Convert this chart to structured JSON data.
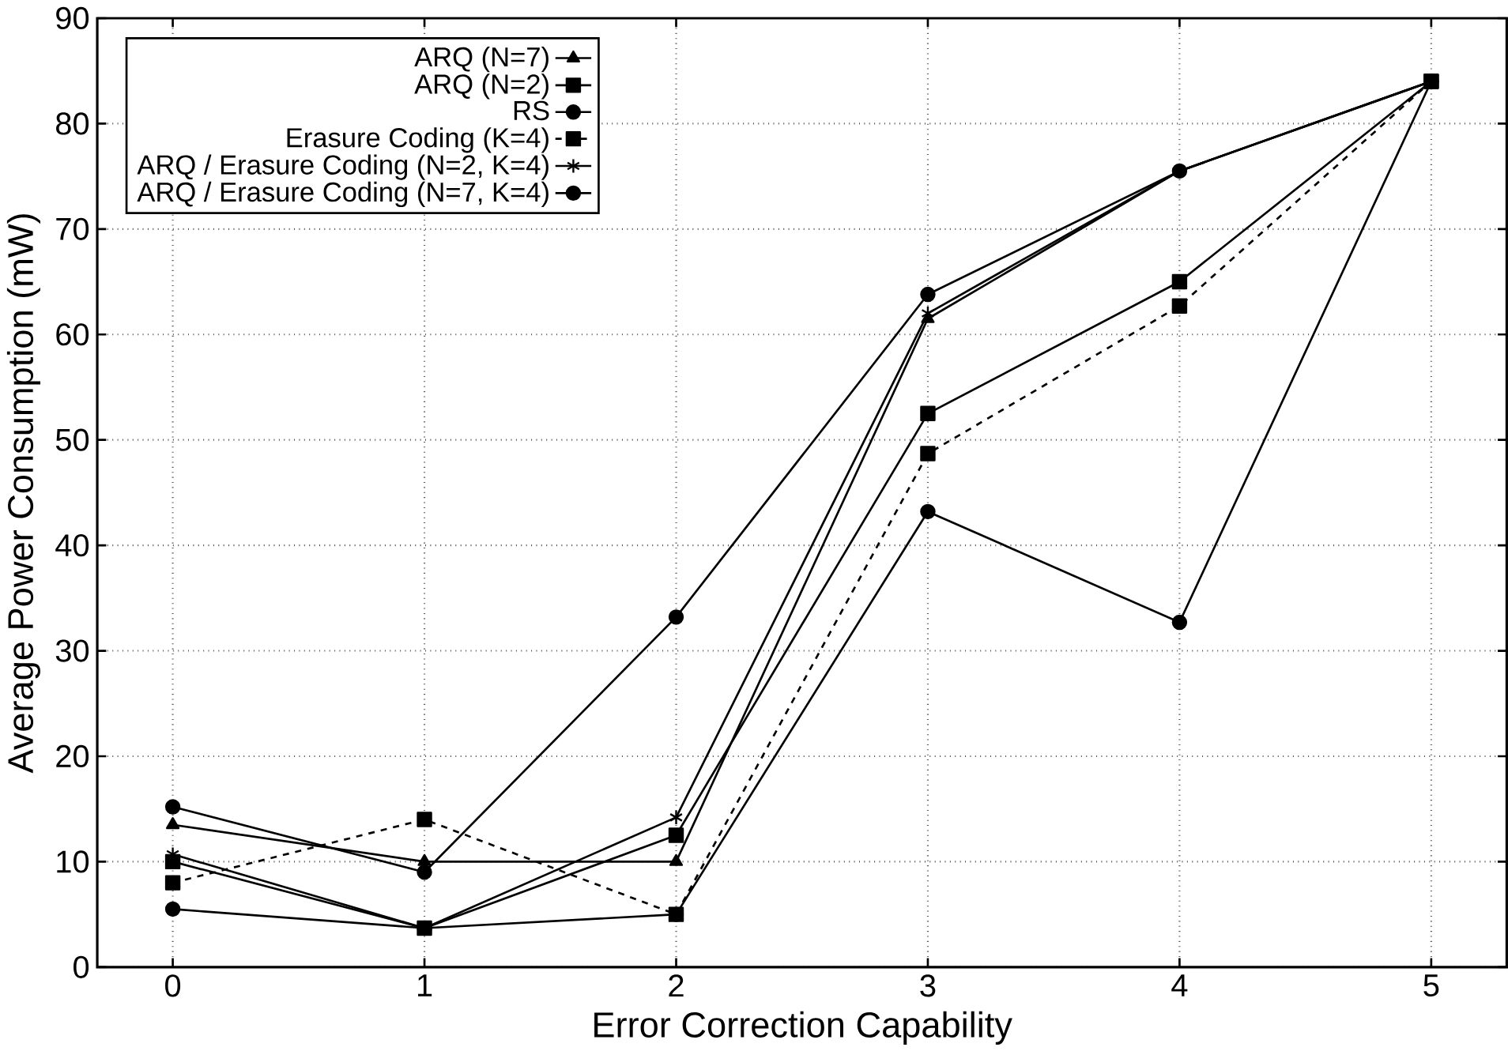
{
  "chart_data": {
    "type": "line",
    "xlabel": "Error Correction Capability",
    "ylabel": "Average Power Consumption (mW)",
    "x": [
      0,
      1,
      2,
      3,
      4,
      5
    ],
    "xlim": [
      -0.3,
      5.3
    ],
    "xticks": [
      0,
      1,
      2,
      3,
      4,
      5
    ],
    "ylim": [
      0,
      90
    ],
    "yticks": [
      0,
      10,
      20,
      30,
      40,
      50,
      60,
      70,
      80,
      90
    ],
    "grid": true,
    "legend": "top left",
    "series": [
      {
        "name": "ARQ (N=7)",
        "color": "#000000",
        "marker": "triangle",
        "line_style": "solid",
        "values": [
          13.5,
          10,
          10,
          61.5,
          75.5,
          84
        ]
      },
      {
        "name": "ARQ (N=2)",
        "color": "#000000",
        "marker": "square",
        "line_style": "solid",
        "values": [
          10,
          3.7,
          12.5,
          52.5,
          65,
          84
        ]
      },
      {
        "name": "RS",
        "color": "#000000",
        "marker": "circle",
        "line_style": "solid",
        "values": [
          5.5,
          3.7,
          5,
          43.2,
          32.7,
          84
        ]
      },
      {
        "name": "Erasure Coding (K=4)",
        "color": "#000000",
        "marker": "square",
        "line_style": "dashed",
        "values": [
          8,
          14,
          5,
          48.7,
          62.7,
          84
        ]
      },
      {
        "name": "ARQ / Erasure Coding (N=2, K=4)",
        "color": "#000000",
        "marker": "cross",
        "line_style": "solid",
        "values": [
          10.7,
          3.7,
          14.2,
          62,
          75.5,
          84
        ]
      },
      {
        "name": "ARQ / Erasure Coding (N=7, K=4)",
        "color": "#000000",
        "marker": "circle",
        "line_style": "solid",
        "values": [
          15.2,
          9,
          33.2,
          63.8,
          75.5,
          84
        ]
      }
    ]
  }
}
